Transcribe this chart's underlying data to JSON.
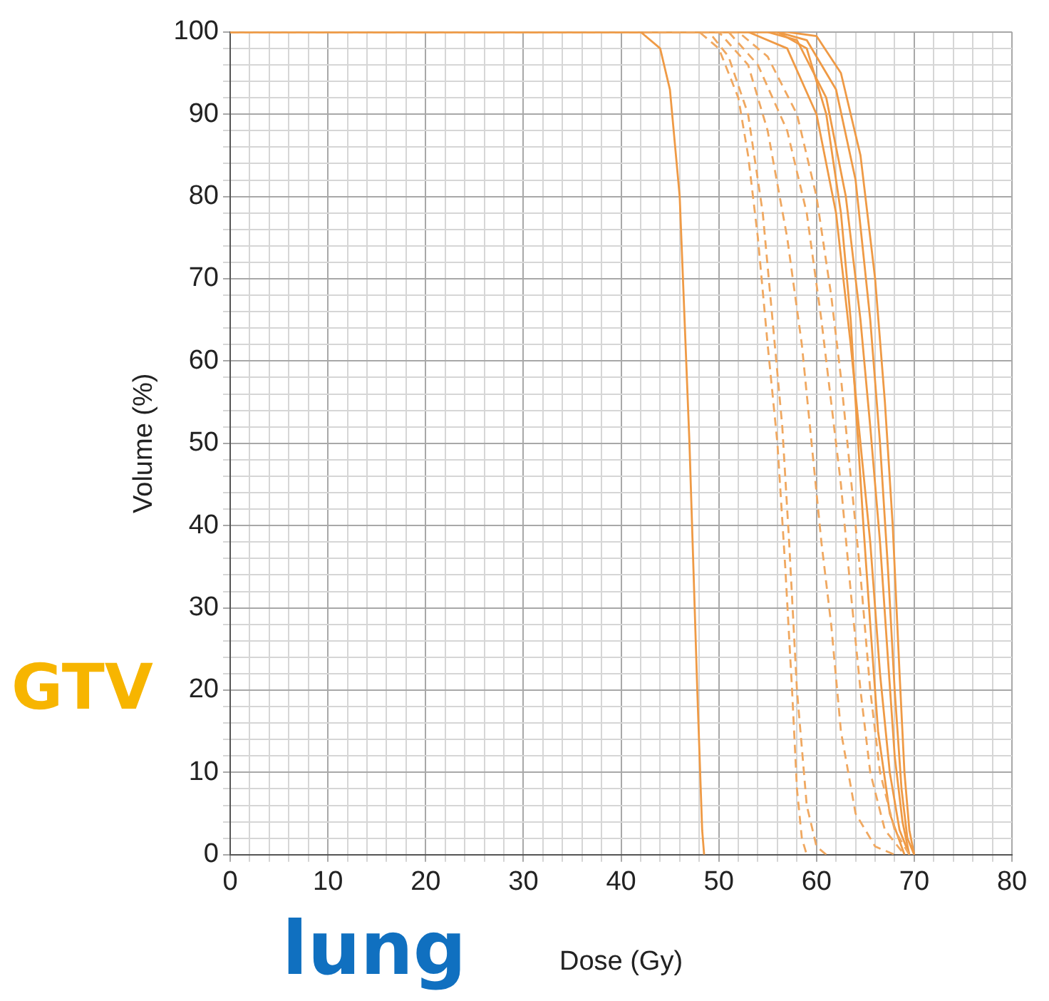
{
  "chart_data": {
    "type": "line",
    "xlabel": "Dose (Gy)",
    "ylabel": "Volume (%)",
    "annotations": [
      "GTV",
      "lung"
    ],
    "xlim": [
      0,
      80
    ],
    "ylim": [
      0,
      100
    ],
    "xticks": [
      0,
      {
        "value": 2,
        "label": null
      },
      {
        "value": 4,
        "label": null
      },
      {
        "value": 6,
        "label": null
      },
      {
        "value": 8,
        "label": null
      },
      10,
      {
        "value": 12,
        "label": null
      },
      {
        "value": 14,
        "label": null
      },
      {
        "value": 16,
        "label": null
      },
      {
        "value": 18,
        "label": null
      },
      20,
      {
        "value": 22,
        "label": null
      },
      {
        "value": 24,
        "label": null
      },
      {
        "value": 26,
        "label": null
      },
      {
        "value": 28,
        "label": null
      },
      30,
      {
        "value": 32,
        "label": null
      },
      {
        "value": 34,
        "label": null
      },
      {
        "value": 36,
        "label": null
      },
      {
        "value": 38,
        "label": null
      },
      40,
      {
        "value": 42,
        "label": null
      },
      {
        "value": 44,
        "label": null
      },
      {
        "value": 46,
        "label": null
      },
      {
        "value": 48,
        "label": null
      },
      50,
      {
        "value": 52,
        "label": null
      },
      {
        "value": 54,
        "label": null
      },
      {
        "value": 56,
        "label": null
      },
      {
        "value": 58,
        "label": null
      },
      60,
      {
        "value": 62,
        "label": null
      },
      {
        "value": 64,
        "label": null
      },
      {
        "value": 66,
        "label": null
      },
      {
        "value": 68,
        "label": null
      },
      70,
      {
        "value": 72,
        "label": null
      },
      {
        "value": 74,
        "label": null
      },
      {
        "value": 76,
        "label": null
      },
      {
        "value": 78,
        "label": null
      },
      80
    ],
    "yticks": [
      0,
      {
        "value": 2,
        "label": null
      },
      {
        "value": 4,
        "label": null
      },
      {
        "value": 6,
        "label": null
      },
      {
        "value": 8,
        "label": null
      },
      10,
      {
        "value": 12,
        "label": null
      },
      {
        "value": 14,
        "label": null
      },
      {
        "value": 16,
        "label": null
      },
      {
        "value": 18,
        "label": null
      },
      20,
      {
        "value": 22,
        "label": null
      },
      {
        "value": 24,
        "label": null
      },
      {
        "value": 26,
        "label": null
      },
      {
        "value": 28,
        "label": null
      },
      30,
      {
        "value": 32,
        "label": null
      },
      {
        "value": 34,
        "label": null
      },
      {
        "value": 36,
        "label": null
      },
      {
        "value": 38,
        "label": null
      },
      40,
      {
        "value": 42,
        "label": null
      },
      {
        "value": 44,
        "label": null
      },
      {
        "value": 46,
        "label": null
      },
      {
        "value": 48,
        "label": null
      },
      50,
      {
        "value": 52,
        "label": null
      },
      {
        "value": 54,
        "label": null
      },
      {
        "value": 56,
        "label": null
      },
      {
        "value": 58,
        "label": null
      },
      60,
      {
        "value": 62,
        "label": null
      },
      {
        "value": 64,
        "label": null
      },
      {
        "value": 66,
        "label": null
      },
      {
        "value": 68,
        "label": null
      },
      70,
      {
        "value": 72,
        "label": null
      },
      {
        "value": 74,
        "label": null
      },
      {
        "value": 76,
        "label": null
      },
      {
        "value": 78,
        "label": null
      },
      80,
      {
        "value": 82,
        "label": null
      },
      {
        "value": 84,
        "label": null
      },
      {
        "value": 86,
        "label": null
      },
      {
        "value": 88,
        "label": null
      },
      90,
      {
        "value": 92,
        "label": null
      },
      {
        "value": 94,
        "label": null
      },
      {
        "value": 96,
        "label": null
      },
      {
        "value": 98,
        "label": null
      },
      100
    ],
    "grid": true,
    "marker": "none",
    "series": [
      {
        "color": "#ef9a45",
        "line_style": "solid",
        "x": [
          0,
          42,
          44,
          45,
          46,
          47,
          47.8,
          48.3,
          48.5
        ],
        "values": [
          100,
          100,
          98,
          93,
          80,
          50,
          20,
          3,
          0
        ]
      },
      {
        "color": "#f0a860",
        "line_style": "dashed",
        "x": [
          0,
          48,
          50,
          52,
          53,
          54,
          55,
          56,
          56.8,
          57.5,
          58,
          58.5,
          59
        ],
        "values": [
          100,
          100,
          98,
          92,
          85,
          75,
          62,
          50,
          35,
          20,
          8,
          2,
          0
        ]
      },
      {
        "color": "#f0a860",
        "line_style": "dashed",
        "x": [
          0,
          49,
          51,
          53,
          54.5,
          55.5,
          56.5,
          57.2,
          58,
          59,
          60,
          61
        ],
        "values": [
          100,
          100,
          97,
          90,
          78,
          65,
          52,
          38,
          20,
          6,
          1,
          0
        ]
      },
      {
        "color": "#f0a860",
        "line_style": "dashed",
        "x": [
          0,
          50,
          53,
          55,
          57,
          58.5,
          59.5,
          60.5,
          61.5,
          62.5,
          64,
          66,
          68
        ],
        "values": [
          100,
          100,
          96,
          88,
          75,
          62,
          50,
          38,
          28,
          15,
          5,
          1,
          0
        ]
      },
      {
        "color": "#f0a860",
        "line_style": "dashed",
        "x": [
          0,
          51,
          54,
          57,
          59,
          60.5,
          61.5,
          62.5,
          63.5,
          64.5,
          65.5,
          67,
          69
        ],
        "values": [
          100,
          100,
          96,
          88,
          78,
          65,
          55,
          45,
          32,
          20,
          10,
          3,
          0
        ]
      },
      {
        "color": "#f0a860",
        "line_style": "dashed",
        "x": [
          0,
          52,
          55,
          58,
          60,
          61.5,
          62.5,
          63.5,
          64.5,
          65.5,
          66.5,
          68,
          69.5
        ],
        "values": [
          100,
          100,
          97,
          90,
          80,
          68,
          58,
          46,
          34,
          20,
          10,
          3,
          0
        ]
      },
      {
        "color": "#ef9a45",
        "line_style": "solid",
        "x": [
          0,
          53,
          57,
          60,
          62,
          63.5,
          64.5,
          65.5,
          66.5,
          67.5,
          68.5,
          69.5
        ],
        "values": [
          100,
          100,
          98,
          90,
          78,
          62,
          50,
          38,
          22,
          10,
          3,
          0
        ]
      },
      {
        "color": "#ef9a45",
        "line_style": "solid",
        "x": [
          0,
          55,
          58,
          61,
          63,
          64.5,
          65.5,
          66.5,
          67.3,
          68,
          68.8,
          69.5
        ],
        "values": [
          100,
          100,
          99,
          92,
          80,
          65,
          52,
          38,
          24,
          12,
          4,
          0
        ]
      },
      {
        "color": "#ef9a45",
        "line_style": "solid",
        "x": [
          0,
          56,
          59,
          62,
          64,
          65.5,
          66.5,
          67.3,
          68,
          68.7,
          69.3,
          70
        ],
        "values": [
          100,
          100,
          99,
          93,
          82,
          65,
          50,
          35,
          20,
          8,
          2,
          0
        ]
      },
      {
        "color": "#ef9a45",
        "line_style": "solid",
        "x": [
          0,
          57,
          60,
          62.5,
          64.5,
          66,
          67,
          67.8,
          68.5,
          69,
          69.5,
          70
        ],
        "values": [
          100,
          100,
          99.5,
          95,
          85,
          70,
          55,
          40,
          22,
          10,
          3,
          0
        ]
      },
      {
        "color": "#ef9a45",
        "line_style": "solid",
        "x": [
          0,
          56,
          59,
          61,
          62.5,
          63.5,
          64,
          64.8,
          65.5,
          66.3,
          67.5,
          69
        ],
        "values": [
          100,
          100,
          98,
          90,
          78,
          65,
          55,
          40,
          28,
          15,
          5,
          0
        ]
      }
    ]
  }
}
